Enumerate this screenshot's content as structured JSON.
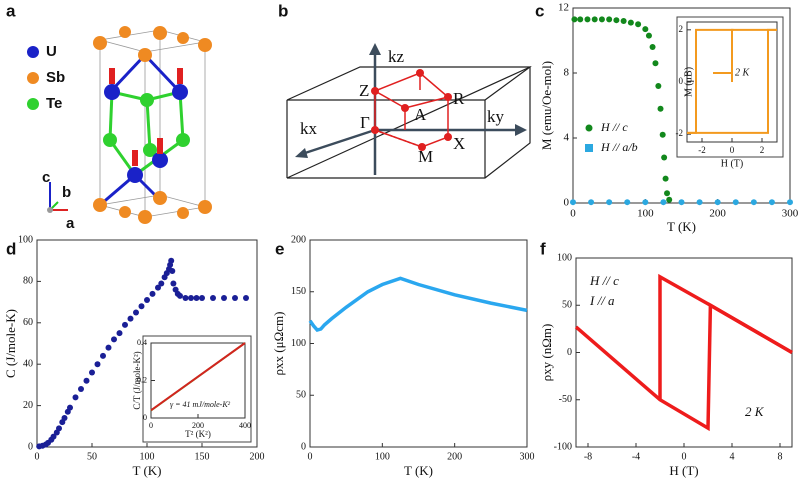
{
  "diagrams": {
    "panel_labels": [
      "a",
      "b",
      "c",
      "d",
      "e",
      "f"
    ],
    "structure": {
      "legend": [
        "U",
        "Sb",
        "Te"
      ],
      "axes": [
        "c",
        "b",
        "a"
      ]
    },
    "brillouin_zone": {
      "axes": [
        "kz",
        "ky",
        "kx"
      ],
      "points": [
        "Z",
        "R",
        "Γ",
        "A",
        "X",
        "M"
      ]
    }
  },
  "chart_data": [
    {
      "type": "scatter",
      "xlabel": "T (K)",
      "ylabel": "M (emu/Oe-mol)",
      "xlim": [
        0,
        300
      ],
      "xticks": [
        0,
        100,
        200,
        300
      ],
      "ylim": [
        0,
        12
      ],
      "yticks": [
        0,
        4,
        8,
        12
      ],
      "legend": "center left",
      "series": [
        {
          "name": "H // c",
          "color": "#12881c",
          "x": [
            2,
            10,
            20,
            30,
            40,
            50,
            60,
            70,
            80,
            90,
            100,
            105,
            110,
            114,
            118,
            121,
            124,
            126,
            128,
            130,
            133
          ],
          "values": [
            11.3,
            11.3,
            11.3,
            11.3,
            11.3,
            11.3,
            11.25,
            11.2,
            11.1,
            11.0,
            10.7,
            10.3,
            9.6,
            8.6,
            7.2,
            5.8,
            4.2,
            2.8,
            1.5,
            0.6,
            0.2
          ]
        },
        {
          "name": "H // a/b",
          "color": "#2ba8e0",
          "x": [
            0,
            25,
            50,
            75,
            100,
            125,
            150,
            175,
            200,
            225,
            250,
            275,
            300
          ],
          "values": [
            0.05,
            0.05,
            0.05,
            0.05,
            0.05,
            0.05,
            0.05,
            0.05,
            0.05,
            0.05,
            0.05,
            0.05,
            0.05
          ]
        }
      ]
    },
    {
      "type": "line",
      "xlabel": "H (T)",
      "ylabel": "M (μB)",
      "xlim": [
        -3,
        3
      ],
      "xticks": [
        -2,
        0,
        2
      ],
      "ylim": [
        -2.3,
        2.3
      ],
      "yticks": [
        -2,
        0,
        2
      ],
      "legend": "center right",
      "series": [
        {
          "name": "2 K",
          "color": "#f39a1f",
          "x": [
            -3,
            2.4,
            2.4,
            3
          ],
          "values": [
            -1.95,
            -1.95,
            2.0,
            2.0
          ]
        },
        {
          "color": "#f39a1f",
          "x": [
            3,
            -2.4,
            -2.4,
            -3
          ],
          "values": [
            2.0,
            2.0,
            -1.95,
            -1.95
          ]
        },
        {
          "color": "#f39a1f",
          "x": [
            0,
            0,
            0.1
          ],
          "values": [
            0,
            2.0,
            2.0
          ]
        }
      ]
    },
    {
      "type": "scatter",
      "xlabel": "T (K)",
      "ylabel": "C (J/mole-K)",
      "xlim": [
        0,
        200
      ],
      "xticks": [
        0,
        50,
        100,
        150,
        200
      ],
      "ylim": [
        0,
        100
      ],
      "yticks": [
        0,
        20,
        40,
        60,
        80,
        100
      ],
      "series": [
        {
          "color": "#1a1f96",
          "x": [
            2,
            5,
            8,
            10,
            13,
            15,
            18,
            20,
            23,
            25,
            28,
            30,
            35,
            40,
            45,
            50,
            55,
            60,
            65,
            70,
            75,
            80,
            85,
            90,
            95,
            100,
            105,
            110,
            113,
            116,
            118,
            120,
            121,
            122,
            123,
            124,
            126,
            128,
            130,
            135,
            140,
            145,
            150,
            160,
            170,
            180,
            190
          ],
          "values": [
            0.3,
            0.6,
            1.2,
            2,
            3.5,
            5,
            7,
            9,
            12,
            14,
            17,
            19,
            24,
            28,
            32,
            36,
            40,
            44,
            48,
            52,
            55,
            59,
            62,
            65,
            68,
            71,
            74,
            77,
            79,
            82,
            84,
            86,
            88,
            90,
            85,
            79,
            76,
            74,
            73,
            72,
            72,
            72,
            72,
            72,
            72,
            72,
            72
          ]
        }
      ]
    },
    {
      "type": "line",
      "xlabel": "T² (K²)",
      "ylabel": "C/T (J/mole-K²)",
      "xlim": [
        0,
        400
      ],
      "xticks": [
        0,
        200,
        400
      ],
      "ylim": [
        0,
        0.4
      ],
      "yticks": [
        0,
        0.2,
        0.4
      ],
      "annotations": [
        "γ = 41 mJ/mole-K²"
      ],
      "series": [
        {
          "color": "#5ccb2c",
          "x": [
            0,
            100,
            200,
            300,
            400
          ],
          "values": [
            0.04,
            0.13,
            0.22,
            0.31,
            0.4
          ]
        },
        {
          "color": "#d2241f",
          "x": [
            0,
            400
          ],
          "values": [
            0.041,
            0.4
          ]
        }
      ]
    },
    {
      "type": "line",
      "xlabel": "T (K)",
      "ylabel": "ρxx (μΩcm)",
      "xlim": [
        0,
        300
      ],
      "xticks": [
        0,
        100,
        200,
        300
      ],
      "ylim": [
        0,
        200
      ],
      "yticks": [
        0,
        50,
        100,
        150,
        200
      ],
      "series": [
        {
          "color": "#2aa7ef",
          "x": [
            0,
            5,
            10,
            15,
            20,
            30,
            50,
            80,
            100,
            125,
            150,
            200,
            250,
            300
          ],
          "values": [
            122,
            117,
            113,
            114,
            118,
            124,
            135,
            150,
            157,
            163,
            157,
            147,
            139,
            132
          ]
        }
      ]
    },
    {
      "type": "line",
      "xlabel": "H (T)",
      "ylabel": "ρxy (nΩm)",
      "xlim": [
        -9,
        9
      ],
      "xticks": [
        -8,
        -4,
        0,
        4,
        8
      ],
      "ylim": [
        -100,
        100
      ],
      "yticks": [
        -100,
        -50,
        0,
        50,
        100
      ],
      "annotations": [
        "H // c",
        "I // a",
        "2 K"
      ],
      "series": [
        {
          "color": "#ee1c1c",
          "x": [
            -9,
            -2,
            2,
            2.2,
            9
          ],
          "values": [
            27,
            -50,
            -80,
            50,
            0
          ]
        },
        {
          "color": "#ee1c1c",
          "x": [
            9,
            2.2,
            -2,
            -2
          ],
          "values": [
            0,
            50,
            80,
            -50
          ]
        }
      ]
    }
  ]
}
